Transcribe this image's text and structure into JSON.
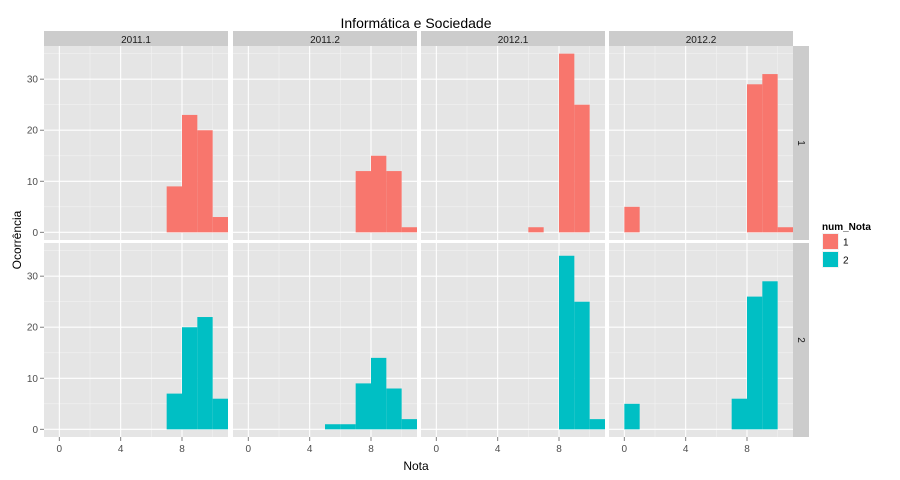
{
  "chart_data": {
    "type": "bar",
    "subtype": "faceted-histogram",
    "title": "Informática e Sociedade",
    "xlabel": "Nota",
    "ylabel": "Ocorrência",
    "xlim": [
      -1,
      11
    ],
    "ylim": [
      -1.5,
      36.5
    ],
    "x_ticks": [
      0,
      4,
      8
    ],
    "y_ticks": [
      0,
      10,
      20,
      30
    ],
    "bin_width": 1,
    "col_facets": [
      "2011.1",
      "2011.2",
      "2012.1",
      "2012.2"
    ],
    "row_facets": [
      "1",
      "2"
    ],
    "grid": true,
    "legend": {
      "title": "num_Nota",
      "position": "right",
      "entries": [
        {
          "label": "1",
          "color": "#F8766D"
        },
        {
          "label": "2",
          "color": "#00BFC4"
        }
      ]
    },
    "colors": {
      "1": "#F8766D",
      "2": "#00BFC4",
      "panel_bg": "#E5E5E5",
      "strip_bg": "#CCCCCC",
      "grid": "#FFFFFF"
    },
    "panels": [
      {
        "col": "2011.1",
        "row": "1",
        "bins": [
          {
            "x": 7,
            "count": 9
          },
          {
            "x": 8,
            "count": 23
          },
          {
            "x": 9,
            "count": 20
          },
          {
            "x": 10,
            "count": 3
          }
        ]
      },
      {
        "col": "2011.2",
        "row": "1",
        "bins": [
          {
            "x": 7,
            "count": 12
          },
          {
            "x": 8,
            "count": 15
          },
          {
            "x": 9,
            "count": 12
          },
          {
            "x": 10,
            "count": 1
          }
        ]
      },
      {
        "col": "2012.1",
        "row": "1",
        "bins": [
          {
            "x": 6,
            "count": 1
          },
          {
            "x": 8,
            "count": 35
          },
          {
            "x": 9,
            "count": 25
          }
        ]
      },
      {
        "col": "2012.2",
        "row": "1",
        "bins": [
          {
            "x": 0,
            "count": 5
          },
          {
            "x": 8,
            "count": 29
          },
          {
            "x": 9,
            "count": 31
          },
          {
            "x": 10,
            "count": 1
          }
        ]
      },
      {
        "col": "2011.1",
        "row": "2",
        "bins": [
          {
            "x": 7,
            "count": 7
          },
          {
            "x": 8,
            "count": 20
          },
          {
            "x": 9,
            "count": 22
          },
          {
            "x": 10,
            "count": 6
          }
        ]
      },
      {
        "col": "2011.2",
        "row": "2",
        "bins": [
          {
            "x": 5,
            "count": 1
          },
          {
            "x": 6,
            "count": 1
          },
          {
            "x": 7,
            "count": 9
          },
          {
            "x": 8,
            "count": 14
          },
          {
            "x": 9,
            "count": 8
          },
          {
            "x": 10,
            "count": 2
          }
        ]
      },
      {
        "col": "2012.1",
        "row": "2",
        "bins": [
          {
            "x": 8,
            "count": 34
          },
          {
            "x": 9,
            "count": 25
          },
          {
            "x": 10,
            "count": 2
          }
        ]
      },
      {
        "col": "2012.2",
        "row": "2",
        "bins": [
          {
            "x": 0,
            "count": 5
          },
          {
            "x": 7,
            "count": 6
          },
          {
            "x": 8,
            "count": 26
          },
          {
            "x": 9,
            "count": 29
          }
        ]
      }
    ]
  }
}
